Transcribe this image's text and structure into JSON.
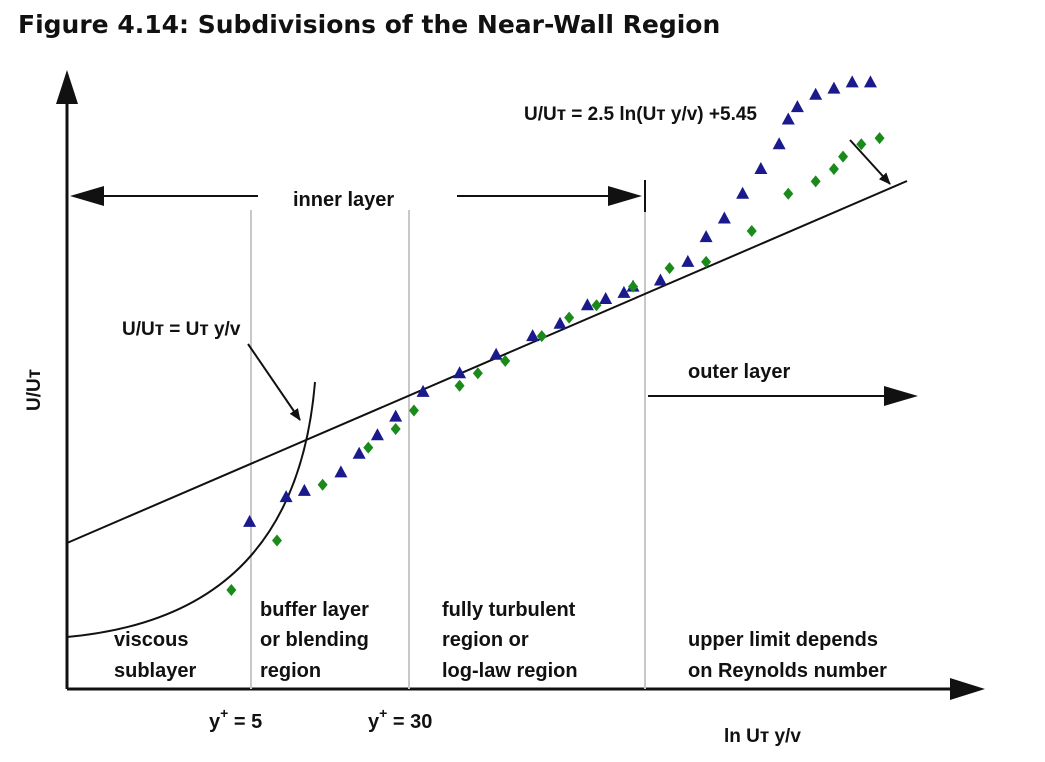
{
  "title": "Figure 4.14: Subdivisions of the Near-Wall Region",
  "axes": {
    "y_label": "U/Uт",
    "x_label": "ln Uт y/v",
    "ticks": [
      {
        "base": "y",
        "sup": "+",
        "rest": " = 5"
      },
      {
        "base": "y",
        "sup": "+",
        "rest": " = 30"
      }
    ]
  },
  "equations": {
    "log_law": "U/Uт = 2.5 ln(Uт y/v) +5.45",
    "viscous": "U/Uт = Uт y/v"
  },
  "regions": {
    "inner_layer": "inner layer",
    "outer_layer": "outer layer",
    "viscous": [
      "viscous",
      "sublayer"
    ],
    "buffer": [
      "buffer layer",
      "or blending",
      "region"
    ],
    "turbulent": [
      "fully turbulent",
      "region or",
      "log-law region"
    ],
    "upper": [
      "upper limit depends",
      "on Reynolds number"
    ]
  },
  "colors": {
    "triangle_marker": "#1a1a8c",
    "diamond_marker": "#1a8a1a",
    "divider": "#c8c8c8",
    "ink": "#111111"
  },
  "markers": {
    "triangle_series": [
      [
        0.2,
        0.27
      ],
      [
        0.24,
        0.31
      ],
      [
        0.26,
        0.32
      ],
      [
        0.3,
        0.35
      ],
      [
        0.32,
        0.38
      ],
      [
        0.34,
        0.41
      ],
      [
        0.36,
        0.44
      ],
      [
        0.39,
        0.48
      ],
      [
        0.43,
        0.51
      ],
      [
        0.47,
        0.54
      ],
      [
        0.51,
        0.57
      ],
      [
        0.54,
        0.59
      ],
      [
        0.57,
        0.62
      ],
      [
        0.59,
        0.63
      ],
      [
        0.61,
        0.64
      ],
      [
        0.62,
        0.65
      ],
      [
        0.65,
        0.66
      ],
      [
        0.68,
        0.69
      ],
      [
        0.7,
        0.73
      ],
      [
        0.72,
        0.76
      ],
      [
        0.74,
        0.8
      ],
      [
        0.76,
        0.84
      ],
      [
        0.78,
        0.88
      ],
      [
        0.79,
        0.92
      ],
      [
        0.8,
        0.94
      ],
      [
        0.82,
        0.96
      ],
      [
        0.84,
        0.97
      ],
      [
        0.86,
        0.98
      ],
      [
        0.88,
        0.98
      ]
    ],
    "diamond_series": [
      [
        0.18,
        0.16
      ],
      [
        0.23,
        0.24
      ],
      [
        0.28,
        0.33
      ],
      [
        0.33,
        0.39
      ],
      [
        0.36,
        0.42
      ],
      [
        0.38,
        0.45
      ],
      [
        0.43,
        0.49
      ],
      [
        0.45,
        0.51
      ],
      [
        0.48,
        0.53
      ],
      [
        0.52,
        0.57
      ],
      [
        0.55,
        0.6
      ],
      [
        0.58,
        0.62
      ],
      [
        0.62,
        0.65
      ],
      [
        0.66,
        0.68
      ],
      [
        0.7,
        0.69
      ],
      [
        0.75,
        0.74
      ],
      [
        0.79,
        0.8
      ],
      [
        0.82,
        0.82
      ],
      [
        0.84,
        0.84
      ],
      [
        0.85,
        0.86
      ],
      [
        0.87,
        0.88
      ],
      [
        0.89,
        0.89
      ]
    ]
  }
}
